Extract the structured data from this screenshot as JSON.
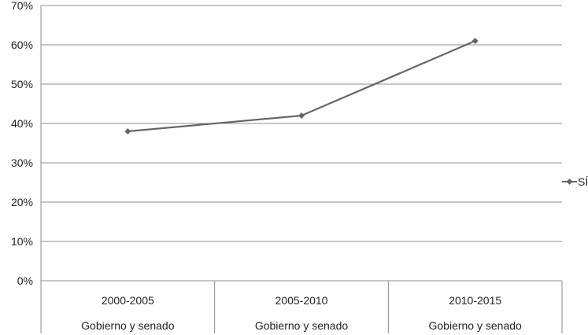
{
  "chart_data": {
    "type": "line",
    "categories": [
      "2000-2005",
      "2005-2010",
      "2010-2015"
    ],
    "sub_categories": [
      "Gobierno y senado",
      "Gobierno y senado",
      "Gobierno y senado"
    ],
    "series": [
      {
        "name": "SÍ",
        "values": [
          38,
          42,
          61
        ],
        "color": "#666666"
      }
    ],
    "y_ticks": [
      "0%",
      "10%",
      "20%",
      "30%",
      "40%",
      "50%",
      "60%",
      "70%"
    ],
    "ylim": [
      0,
      70
    ],
    "y_unit": "%",
    "grid": true,
    "legend_position": "right"
  }
}
